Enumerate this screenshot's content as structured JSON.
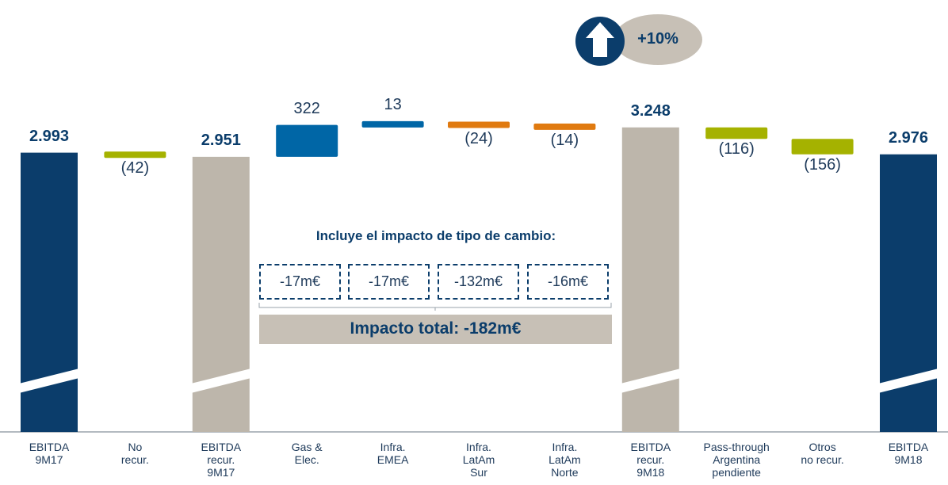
{
  "chart_data": {
    "type": "waterfall",
    "categories": [
      "EBITDA\n9M17",
      "No\nrecur.",
      "EBITDA\nrecur.\n9M17",
      "Gas &\nElec.",
      "Infra.\nEMEA",
      "Infra.\nLatAm\nSur",
      "Infra.\nLatAm\nNorte",
      "EBITDA\nrecur.\n9M18",
      "Pass-through\nArgentina\npendiente",
      "Otros\nno recur.",
      "EBITDA\n9M18"
    ],
    "values": [
      2993,
      -42,
      2951,
      322,
      13,
      -24,
      -14,
      3248,
      -116,
      -156,
      2976
    ],
    "value_labels": [
      "2.993",
      "(42)",
      "2.951",
      "322",
      "13",
      "(24)",
      "(14)",
      "3.248",
      "(116)",
      "(156)",
      "2.976"
    ],
    "measures": [
      "total",
      "relative",
      "total",
      "relative",
      "relative",
      "relative",
      "relative",
      "total",
      "relative",
      "relative",
      "total"
    ],
    "colors": [
      "#0b3d6b",
      "#a5b200",
      "#bdb6ab",
      "#0066a6",
      "#0066a6",
      "#e07a10",
      "#e07a10",
      "#bdb6ab",
      "#a5b200",
      "#a5b200",
      "#0b3d6b"
    ],
    "annotations": {
      "growth": "+10%",
      "fx_title": "Incluye el impacto de tipo de cambio:",
      "fx_items": [
        "-17m€",
        "-17m€",
        "-132m€",
        "-16m€"
      ],
      "fx_total": "Impacto total: -182m€"
    }
  }
}
